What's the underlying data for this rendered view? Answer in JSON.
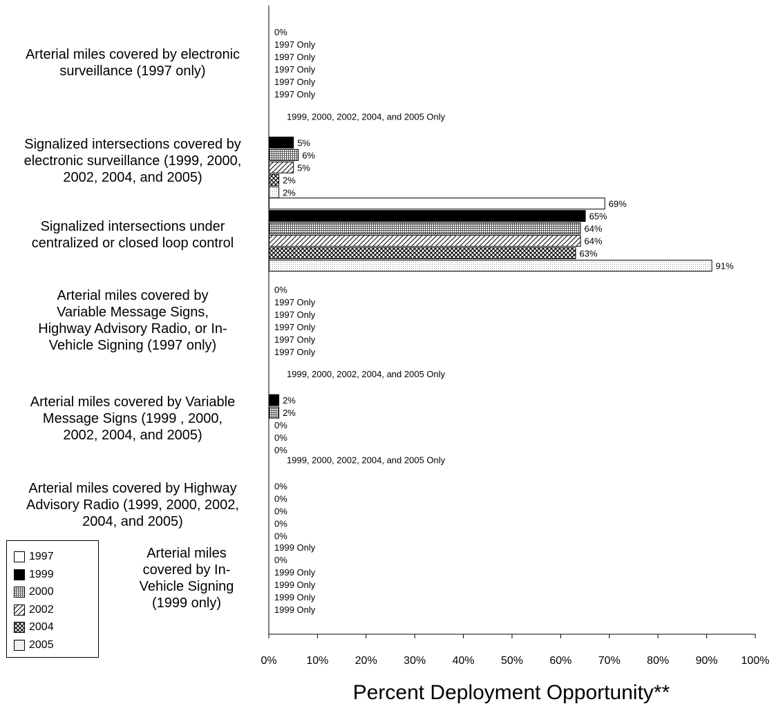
{
  "chart_data": {
    "type": "bar",
    "orientation": "horizontal",
    "xlabel": "Percent Deployment Opportunity**",
    "xlim": [
      0,
      100
    ],
    "x_ticks": [
      "0%",
      "10%",
      "20%",
      "30%",
      "40%",
      "50%",
      "60%",
      "70%",
      "80%",
      "90%",
      "100%"
    ],
    "series": [
      {
        "name": "1997",
        "pattern": "white"
      },
      {
        "name": "1999",
        "pattern": "solid"
      },
      {
        "name": "2000",
        "pattern": "grid"
      },
      {
        "name": "2002",
        "pattern": "diagonal"
      },
      {
        "name": "2004",
        "pattern": "crosshatch"
      },
      {
        "name": "2005",
        "pattern": "dots"
      }
    ],
    "categories": [
      {
        "label": [
          "Arterial miles covered by electronic",
          "surveillance (1997 only)"
        ],
        "note": "",
        "bars": [
          {
            "value": 0,
            "label": "0%"
          },
          {
            "value": null,
            "label": "1997 Only"
          },
          {
            "value": null,
            "label": "1997 Only"
          },
          {
            "value": null,
            "label": "1997 Only"
          },
          {
            "value": null,
            "label": "1997 Only"
          },
          {
            "value": null,
            "label": "1997 Only"
          }
        ]
      },
      {
        "label": [
          "Signalized intersections covered by",
          "electronic surveillance (1999, 2000,",
          "2002, 2004, and 2005)"
        ],
        "note": "1999, 2000, 2002, 2004, and 2005 Only",
        "bars": [
          {
            "value": null,
            "label": ""
          },
          {
            "value": 5,
            "label": "5%"
          },
          {
            "value": 6,
            "label": "6%"
          },
          {
            "value": 5,
            "label": "5%"
          },
          {
            "value": 2,
            "label": "2%"
          },
          {
            "value": 2,
            "label": "2%"
          }
        ]
      },
      {
        "label": [
          "Signalized intersections under",
          "centralized or closed loop control"
        ],
        "note": "",
        "bars": [
          {
            "value": 69,
            "label": "69%"
          },
          {
            "value": 65,
            "label": "65%"
          },
          {
            "value": 64,
            "label": "64%"
          },
          {
            "value": 64,
            "label": "64%"
          },
          {
            "value": 63,
            "label": "63%"
          },
          {
            "value": 91,
            "label": "91%"
          }
        ]
      },
      {
        "label": [
          "Arterial miles covered by",
          "Variable Message Signs,",
          "Highway Advisory Radio, or In-",
          "Vehicle Signing (1997 only)"
        ],
        "note": "",
        "bars": [
          {
            "value": 0,
            "label": "0%"
          },
          {
            "value": null,
            "label": "1997 Only"
          },
          {
            "value": null,
            "label": "1997 Only"
          },
          {
            "value": null,
            "label": "1997 Only"
          },
          {
            "value": null,
            "label": "1997 Only"
          },
          {
            "value": null,
            "label": "1997 Only"
          }
        ]
      },
      {
        "label": [
          "Arterial miles covered by Variable",
          "Message Signs (1999 , 2000,",
          "2002, 2004, and 2005)"
        ],
        "note": "1999, 2000, 2002, 2004, and 2005 Only",
        "bars": [
          {
            "value": null,
            "label": ""
          },
          {
            "value": 2,
            "label": "2%"
          },
          {
            "value": 2,
            "label": "2%"
          },
          {
            "value": 0,
            "label": "0%"
          },
          {
            "value": 0,
            "label": "0%"
          },
          {
            "value": 0,
            "label": "0%"
          }
        ]
      },
      {
        "label": [
          "Arterial miles covered by Highway",
          "Advisory Radio (1999, 2000, 2002,",
          "2004, and 2005)"
        ],
        "note": "1999, 2000, 2002, 2004, and 2005 Only",
        "bars": [
          {
            "value": null,
            "label": ""
          },
          {
            "value": 0,
            "label": "0%"
          },
          {
            "value": 0,
            "label": "0%"
          },
          {
            "value": 0,
            "label": "0%"
          },
          {
            "value": 0,
            "label": "0%"
          },
          {
            "value": 0,
            "label": "0%"
          }
        ]
      },
      {
        "label": [
          "Arterial miles",
          "covered by In-",
          "Vehicle Signing",
          "(1999 only)"
        ],
        "note": "",
        "bars": [
          {
            "value": null,
            "label": "1999 Only"
          },
          {
            "value": 0,
            "label": "0%"
          },
          {
            "value": null,
            "label": "1999 Only"
          },
          {
            "value": null,
            "label": "1999 Only"
          },
          {
            "value": null,
            "label": "1999 Only"
          },
          {
            "value": null,
            "label": "1999 Only"
          }
        ]
      }
    ]
  }
}
